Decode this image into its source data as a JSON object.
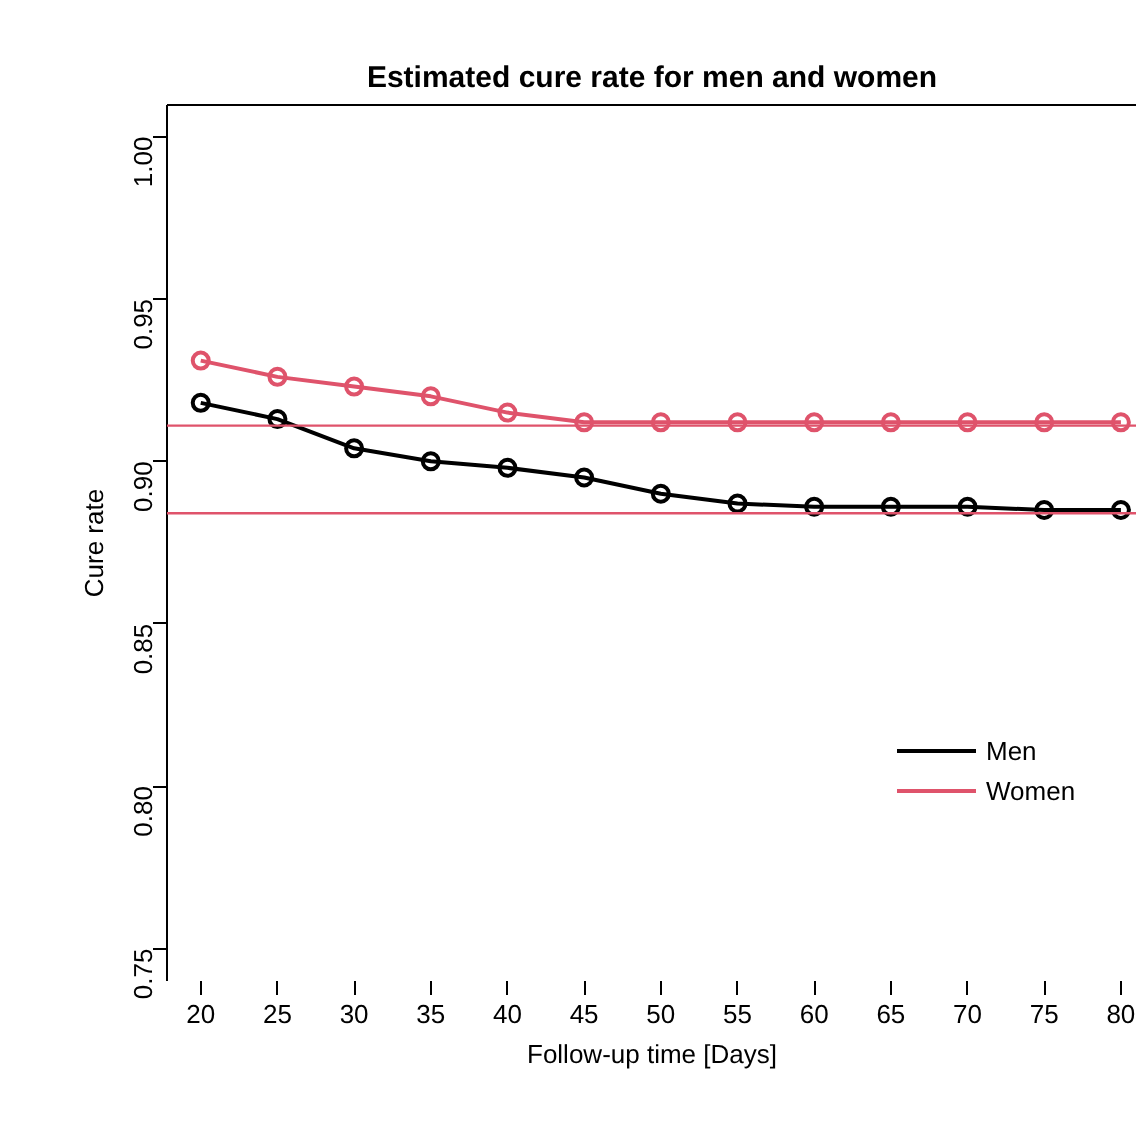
{
  "chart_data": {
    "type": "line",
    "title": "Estimated cure rate for men and women",
    "xlabel": "Follow-up time [Days]",
    "ylabel": "Cure rate",
    "x": [
      20,
      25,
      30,
      35,
      40,
      45,
      50,
      55,
      60,
      65,
      70,
      75,
      80
    ],
    "series": [
      {
        "name": "Men",
        "color": "#000000",
        "values": [
          0.918,
          0.913,
          0.904,
          0.9,
          0.898,
          0.895,
          0.89,
          0.887,
          0.886,
          0.886,
          0.886,
          0.885,
          0.885
        ]
      },
      {
        "name": "Women",
        "color": "#df536b",
        "values": [
          0.931,
          0.926,
          0.923,
          0.92,
          0.915,
          0.912,
          0.912,
          0.912,
          0.912,
          0.912,
          0.912,
          0.912,
          0.912
        ]
      }
    ],
    "ref_lines": [
      {
        "axis": "y",
        "value": 0.911,
        "label": null,
        "color": "#df536b"
      },
      {
        "axis": "y",
        "value": 0.884,
        "label": null,
        "color": "#df536b"
      }
    ],
    "xlim": [
      17.8,
      81.05
    ],
    "ylim": [
      0.74,
      1.0097
    ],
    "xticks": [
      20,
      25,
      30,
      35,
      40,
      45,
      50,
      55,
      60,
      65,
      70,
      75,
      80
    ],
    "yticks": [
      0.75,
      {
        "value": 0.8,
        "label": "0.80"
      },
      0.85,
      {
        "value": 0.9,
        "label": "0.90"
      },
      0.95,
      {
        "value": 1.0,
        "label": "1.00"
      }
    ],
    "marker": "circle",
    "line_style": "solid",
    "grid": false,
    "legend": "right"
  }
}
